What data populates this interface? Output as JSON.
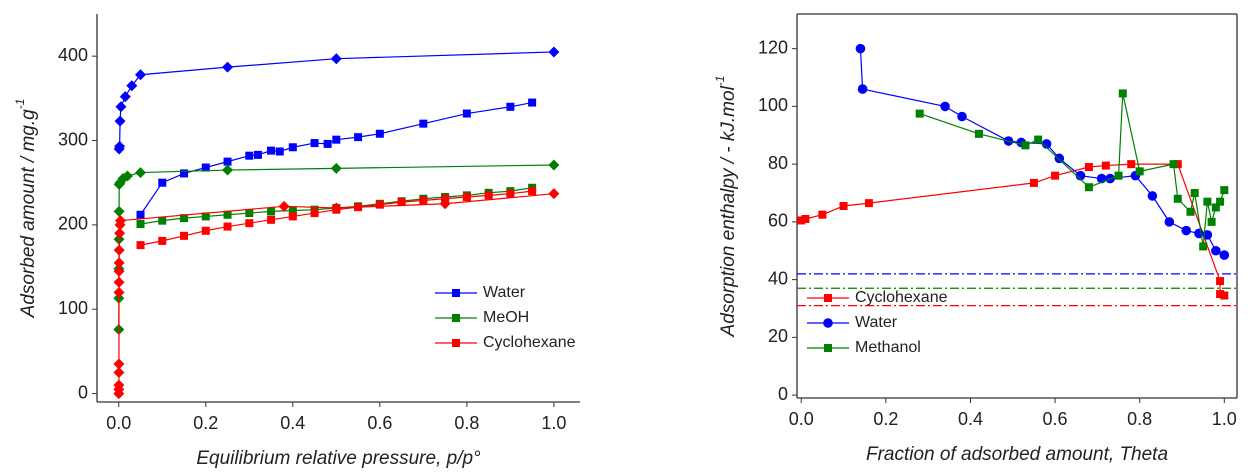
{
  "chart_data": [
    {
      "type": "scatter-line",
      "xlabel": "Equilibrium relative pressure, p/p°",
      "ylabel": "Adsorbed amount / mg.g",
      "ylabel_sup": "-1",
      "xlim": [
        -0.05,
        1.06
      ],
      "ylim": [
        -10,
        450
      ],
      "xticks": [
        {
          "value": 0,
          "label": "0.0"
        },
        {
          "value": 0.2,
          "label": "0.2"
        },
        {
          "value": 0.4,
          "label": "0.4"
        },
        {
          "value": 0.6,
          "label": "0.6"
        },
        {
          "value": 0.8,
          "label": "0.8"
        },
        {
          "value": 1,
          "label": "1.0"
        }
      ],
      "yticks": [
        0,
        100,
        200,
        300,
        400
      ],
      "box": false,
      "legend": "lower right",
      "series": [
        {
          "name": "Water",
          "color": "#0000ff",
          "marker": "square",
          "x": [
            0.05,
            0.1,
            0.15,
            0.2,
            0.25,
            0.3,
            0.32,
            0.35,
            0.37,
            0.4,
            0.45,
            0.48,
            0.5,
            0.55,
            0.6,
            0.7,
            0.8,
            0.9,
            0.95
          ],
          "values": [
            212,
            250,
            261,
            268,
            275,
            282,
            283,
            288,
            287,
            292,
            297,
            296,
            301,
            304,
            308,
            320,
            332,
            340,
            345
          ]
        },
        {
          "color": "#0000ff",
          "marker": "diamond",
          "x": [
            0.001,
            0.002,
            0.003,
            0.005,
            0.015,
            0.03,
            0.05,
            0.25,
            0.5,
            1.0
          ],
          "values": [
            290,
            293,
            323,
            340,
            352,
            365,
            378,
            387,
            397,
            405
          ]
        },
        {
          "name": "MeOH",
          "color": "#008000",
          "marker": "square",
          "x": [
            0.05,
            0.1,
            0.15,
            0.2,
            0.25,
            0.3,
            0.35,
            0.4,
            0.45,
            0.5,
            0.55,
            0.6,
            0.65,
            0.7,
            0.75,
            0.8,
            0.85,
            0.9,
            0.95
          ],
          "values": [
            201,
            205,
            208,
            210,
            212,
            214,
            216,
            217,
            218,
            220,
            222,
            225,
            228,
            231,
            233,
            235,
            238,
            240,
            244
          ]
        },
        {
          "color": "#008000",
          "marker": "diamond",
          "x": [
            0.0001,
            0.0002,
            0.0003,
            0.0005,
            0.0008,
            0.001,
            0.003,
            0.01,
            0.02,
            0.05,
            0.25,
            0.5,
            1.0
          ],
          "values": [
            76,
            113,
            148,
            183,
            216,
            248,
            250,
            255,
            258,
            262,
            265,
            267,
            271
          ]
        },
        {
          "name": "Cyclohexane",
          "color": "#ff0000",
          "marker": "square",
          "x": [
            0.05,
            0.1,
            0.15,
            0.2,
            0.25,
            0.3,
            0.35,
            0.4,
            0.45,
            0.5,
            0.55,
            0.6,
            0.65,
            0.7,
            0.75,
            0.8,
            0.85,
            0.9,
            0.95
          ],
          "values": [
            176,
            181,
            187,
            193,
            198,
            202,
            206,
            210,
            214,
            218,
            221,
            224,
            227,
            229,
            231,
            233,
            235,
            237,
            240
          ]
        },
        {
          "color": "#ff0000",
          "marker": "diamond",
          "x": [
            0.0001,
            0.0002,
            0.0003,
            0.0004,
            0.0005,
            0.0006,
            0.0007,
            0.0008,
            0.0009,
            0.001,
            0.002,
            0.003,
            0.004,
            0.38,
            0.5,
            0.75,
            1.0
          ],
          "values": [
            0,
            5,
            10,
            25,
            35,
            120,
            132,
            145,
            155,
            170,
            190,
            200,
            205,
            222,
            220,
            225,
            237
          ]
        }
      ]
    },
    {
      "type": "scatter-line",
      "xlabel": "Fraction of adsorbed amount, Theta",
      "ylabel": "Adsorption enthalpy / - kJ.mol",
      "ylabel_sup": "-1",
      "xlim": [
        -0.01,
        1.03
      ],
      "ylim": [
        -1,
        132
      ],
      "xticks": [
        {
          "value": 0,
          "label": "0.0"
        },
        {
          "value": 0.2,
          "label": "0.2"
        },
        {
          "value": 0.4,
          "label": "0.4"
        },
        {
          "value": 0.6,
          "label": "0.6"
        },
        {
          "value": 0.8,
          "label": "0.8"
        },
        {
          "value": 1,
          "label": "1.0"
        }
      ],
      "yticks": [
        0,
        20,
        40,
        60,
        80,
        100,
        120
      ],
      "box": true,
      "legend": "lower left",
      "reference_lines": [
        {
          "value": 42,
          "color": "#0000ff"
        },
        {
          "value": 37,
          "color": "#008000"
        },
        {
          "value": 31,
          "color": "#ff0000"
        }
      ],
      "series": [
        {
          "name": "Cyclohexane",
          "color": "#ff0000",
          "marker": "square",
          "x": [
            0,
            0.01,
            0.05,
            0.1,
            0.16,
            0.55,
            0.6,
            0.68,
            0.72,
            0.78,
            0.89,
            0.99,
            0.99,
            1.0
          ],
          "values": [
            60.5,
            61,
            62.5,
            65.5,
            66.5,
            73.5,
            76,
            79,
            79.5,
            80,
            80,
            39.5,
            35,
            34.5
          ]
        },
        {
          "name": "Water",
          "color": "#0000ff",
          "marker": "circle",
          "x": [
            0.14,
            0.145,
            0.34,
            0.38,
            0.49,
            0.52,
            0.58,
            0.61,
            0.66,
            0.71,
            0.73,
            0.79,
            0.83,
            0.87,
            0.91,
            0.94,
            0.96,
            0.98,
            1.0
          ],
          "values": [
            120,
            106,
            100,
            96.5,
            88,
            87.5,
            87,
            82,
            76,
            75,
            75,
            76,
            69,
            60,
            57,
            56,
            55.5,
            50,
            48.5
          ]
        },
        {
          "name": "Methanol",
          "color": "#008000",
          "marker": "square",
          "x": [
            0.28,
            0.42,
            0.53,
            0.56,
            0.68,
            0.75,
            0.76,
            0.8,
            0.88,
            0.89,
            0.92,
            0.93,
            0.95,
            0.96,
            0.97,
            0.98,
            0.99,
            1.0
          ],
          "values": [
            97.5,
            90.5,
            86.5,
            88.5,
            72,
            76,
            104.5,
            77.5,
            80,
            68,
            63.5,
            70,
            51.5,
            67,
            60,
            65,
            67,
            71
          ]
        }
      ]
    }
  ]
}
